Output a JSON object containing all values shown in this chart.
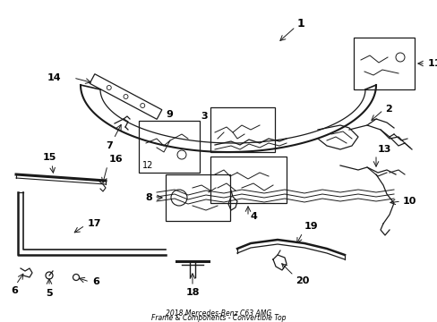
{
  "bg_color": "#ffffff",
  "line_color": "#1a1a1a",
  "text_color": "#000000",
  "fig_width": 4.89,
  "fig_height": 3.6,
  "dpi": 100,
  "title1": "2018 Mercedes-Benz C63 AMG",
  "title2": "Frame & Components - Convertible Top"
}
